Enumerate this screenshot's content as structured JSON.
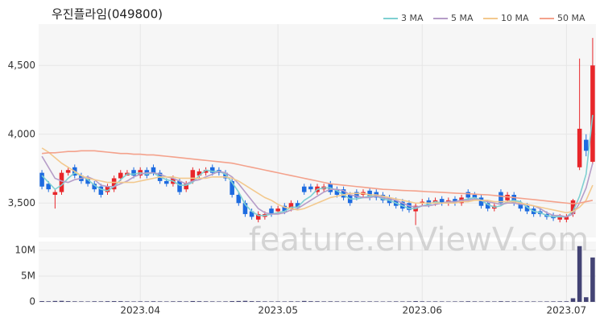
{
  "chart_data": {
    "type": "candlestick",
    "title": "우진플라임(049800)",
    "watermark": "feature.enViewV.com",
    "categories": [
      null,
      null,
      null,
      null,
      null,
      null,
      null,
      null,
      null,
      null,
      null,
      null,
      null,
      null,
      null,
      null,
      null,
      null,
      null,
      null,
      null,
      null,
      null,
      null,
      null,
      null,
      null,
      null,
      null,
      null,
      null,
      null,
      null,
      null,
      null,
      null,
      null,
      null,
      null,
      null,
      null,
      null,
      null,
      null,
      null,
      null,
      null,
      null,
      null,
      null,
      null,
      null,
      null,
      null,
      null,
      null,
      null,
      null,
      null,
      null,
      null,
      null,
      null,
      null,
      null,
      null,
      null,
      null,
      null,
      null,
      null,
      null,
      null,
      null,
      null,
      null,
      null,
      null,
      null,
      null,
      null,
      null,
      null,
      null,
      null
    ],
    "xticks": [
      {
        "value": 15,
        "label": "2023.04"
      },
      {
        "value": 36,
        "label": "2023.05"
      },
      {
        "value": 58,
        "label": "2023.06"
      },
      {
        "value": 80,
        "label": "2023.07"
      }
    ],
    "open": [
      3720,
      3640,
      3560,
      3580,
      3720,
      3760,
      3700,
      3680,
      3640,
      3620,
      3580,
      3600,
      3680,
      3700,
      3740,
      3700,
      3740,
      3760,
      3720,
      3660,
      3640,
      3660,
      3600,
      3660,
      3700,
      3720,
      3760,
      3740,
      3720,
      3660,
      3560,
      3500,
      3440,
      3380,
      3400,
      3460,
      3440,
      3480,
      3460,
      3500,
      3620,
      3620,
      3580,
      3600,
      3640,
      3600,
      3600,
      3560,
      3580,
      3560,
      3590,
      3580,
      3560,
      3540,
      3520,
      3510,
      3500,
      3440,
      3500,
      3520,
      3500,
      3530,
      3500,
      3530,
      3500,
      3580,
      3560,
      3540,
      3500,
      3460,
      3580,
      3520,
      3560,
      3500,
      3480,
      3460,
      3440,
      3420,
      3410,
      3380,
      3380,
      3420,
      3760,
      3960,
      3800
    ],
    "high": [
      3740,
      3660,
      3600,
      3740,
      3760,
      3780,
      3720,
      3700,
      3660,
      3640,
      3640,
      3700,
      3740,
      3740,
      3760,
      3760,
      3760,
      3780,
      3740,
      3680,
      3700,
      3680,
      3660,
      3760,
      3750,
      3760,
      3780,
      3760,
      3740,
      3680,
      3580,
      3520,
      3460,
      3440,
      3440,
      3480,
      3480,
      3500,
      3520,
      3520,
      3640,
      3640,
      3640,
      3640,
      3660,
      3620,
      3620,
      3580,
      3600,
      3600,
      3610,
      3600,
      3580,
      3560,
      3540,
      3530,
      3520,
      3500,
      3530,
      3540,
      3540,
      3550,
      3540,
      3550,
      3560,
      3600,
      3580,
      3560,
      3520,
      3500,
      3600,
      3580,
      3580,
      3520,
      3500,
      3480,
      3460,
      3440,
      3430,
      3420,
      3420,
      3530,
      4550,
      4000,
      4700
    ],
    "low": [
      3600,
      3580,
      3460,
      3560,
      3700,
      3680,
      3640,
      3620,
      3580,
      3540,
      3560,
      3580,
      3660,
      3700,
      3680,
      3680,
      3680,
      3700,
      3640,
      3620,
      3620,
      3560,
      3580,
      3640,
      3680,
      3700,
      3700,
      3700,
      3660,
      3540,
      3480,
      3400,
      3380,
      3360,
      3380,
      3400,
      3420,
      3420,
      3440,
      3450,
      3560,
      3580,
      3560,
      3580,
      3560,
      3540,
      3520,
      3480,
      3520,
      3540,
      3520,
      3520,
      3500,
      3480,
      3460,
      3440,
      3430,
      3340,
      3480,
      3470,
      3480,
      3480,
      3480,
      3480,
      3480,
      3520,
      3520,
      3460,
      3440,
      3440,
      3480,
      3500,
      3480,
      3440,
      3420,
      3400,
      3400,
      3380,
      3370,
      3360,
      3360,
      3400,
      3740,
      3840,
      3780
    ],
    "close": [
      3620,
      3600,
      3580,
      3720,
      3740,
      3700,
      3660,
      3640,
      3600,
      3560,
      3620,
      3680,
      3720,
      3720,
      3700,
      3740,
      3700,
      3720,
      3660,
      3640,
      3680,
      3580,
      3640,
      3740,
      3730,
      3740,
      3720,
      3720,
      3680,
      3560,
      3500,
      3420,
      3400,
      3420,
      3420,
      3420,
      3460,
      3440,
      3500,
      3470,
      3580,
      3600,
      3620,
      3620,
      3580,
      3560,
      3540,
      3500,
      3540,
      3580,
      3540,
      3540,
      3520,
      3500,
      3480,
      3460,
      3450,
      3480,
      3510,
      3490,
      3520,
      3500,
      3520,
      3500,
      3540,
      3540,
      3540,
      3480,
      3460,
      3480,
      3500,
      3560,
      3500,
      3460,
      3440,
      3420,
      3420,
      3400,
      3390,
      3400,
      3400,
      3520,
      4040,
      3880,
      4500
    ],
    "up_color": "#e8262a",
    "down_color": "#1d6be0",
    "ylim": [
      3250,
      4800
    ],
    "yticks": [
      {
        "value": 3500,
        "label": "3,500"
      },
      {
        "value": 4000,
        "label": "4,000"
      },
      {
        "value": 4500,
        "label": "4,500"
      }
    ],
    "grid": true,
    "legend": "top-right",
    "series": [
      {
        "name": "3 MA",
        "color": "#7fd0d2",
        "values": [
          3700,
          3650,
          3600,
          3630,
          3680,
          3720,
          3700,
          3670,
          3630,
          3600,
          3590,
          3620,
          3670,
          3710,
          3710,
          3720,
          3710,
          3720,
          3690,
          3670,
          3660,
          3630,
          3630,
          3650,
          3700,
          3740,
          3730,
          3730,
          3710,
          3650,
          3580,
          3490,
          3440,
          3410,
          3410,
          3420,
          3430,
          3440,
          3470,
          3470,
          3520,
          3550,
          3600,
          3610,
          3610,
          3590,
          3560,
          3530,
          3530,
          3540,
          3550,
          3550,
          3530,
          3520,
          3500,
          3480,
          3460,
          3460,
          3480,
          3490,
          3510,
          3500,
          3510,
          3510,
          3520,
          3530,
          3540,
          3520,
          3490,
          3470,
          3480,
          3510,
          3520,
          3510,
          3470,
          3440,
          3430,
          3410,
          3400,
          3400,
          3400,
          3440,
          3550,
          3710,
          4140
        ]
      },
      {
        "name": "5 MA",
        "color": "#b69dc8",
        "values": [
          3840,
          3760,
          3680,
          3660,
          3650,
          3670,
          3680,
          3690,
          3670,
          3630,
          3620,
          3620,
          3640,
          3660,
          3690,
          3710,
          3720,
          3720,
          3710,
          3690,
          3680,
          3660,
          3640,
          3660,
          3670,
          3690,
          3710,
          3730,
          3720,
          3690,
          3640,
          3580,
          3520,
          3460,
          3430,
          3420,
          3420,
          3430,
          3450,
          3460,
          3490,
          3520,
          3550,
          3580,
          3600,
          3600,
          3590,
          3560,
          3550,
          3540,
          3540,
          3550,
          3540,
          3530,
          3520,
          3500,
          3480,
          3470,
          3480,
          3480,
          3490,
          3500,
          3510,
          3510,
          3520,
          3520,
          3530,
          3520,
          3510,
          3500,
          3490,
          3500,
          3500,
          3490,
          3490,
          3480,
          3460,
          3430,
          3410,
          3410,
          3400,
          3420,
          3500,
          3610,
          3790
        ]
      },
      {
        "name": "10 MA",
        "color": "#f3c98e",
        "values": [
          3900,
          3870,
          3830,
          3790,
          3760,
          3730,
          3700,
          3680,
          3670,
          3660,
          3650,
          3650,
          3650,
          3650,
          3650,
          3660,
          3670,
          3680,
          3690,
          3690,
          3690,
          3680,
          3680,
          3680,
          3680,
          3680,
          3690,
          3690,
          3690,
          3680,
          3660,
          3630,
          3600,
          3570,
          3540,
          3520,
          3490,
          3470,
          3460,
          3450,
          3460,
          3480,
          3500,
          3520,
          3540,
          3550,
          3560,
          3570,
          3570,
          3570,
          3560,
          3560,
          3550,
          3540,
          3530,
          3520,
          3510,
          3500,
          3500,
          3500,
          3500,
          3500,
          3500,
          3500,
          3510,
          3510,
          3520,
          3520,
          3520,
          3510,
          3510,
          3510,
          3510,
          3500,
          3490,
          3480,
          3470,
          3460,
          3450,
          3440,
          3430,
          3440,
          3470,
          3520,
          3630
        ]
      },
      {
        "name": "50 MA",
        "color": "#f4a28c",
        "values": [
          3860,
          3865,
          3865,
          3870,
          3875,
          3875,
          3880,
          3880,
          3880,
          3875,
          3870,
          3865,
          3860,
          3860,
          3855,
          3855,
          3850,
          3850,
          3845,
          3840,
          3835,
          3830,
          3825,
          3820,
          3815,
          3810,
          3805,
          3800,
          3795,
          3790,
          3780,
          3770,
          3760,
          3750,
          3740,
          3730,
          3720,
          3710,
          3700,
          3690,
          3680,
          3670,
          3660,
          3650,
          3640,
          3635,
          3630,
          3625,
          3620,
          3615,
          3610,
          3605,
          3600,
          3598,
          3595,
          3592,
          3590,
          3588,
          3585,
          3582,
          3580,
          3578,
          3575,
          3572,
          3570,
          3568,
          3565,
          3562,
          3560,
          3555,
          3550,
          3545,
          3540,
          3535,
          3530,
          3525,
          3520,
          3515,
          3510,
          3505,
          3500,
          3495,
          3500,
          3510,
          3520
        ]
      }
    ],
    "volume": {
      "color": "#434374",
      "ylim": [
        0,
        11700000
      ],
      "yticks": [
        0,
        {
          "value": 5000000,
          "label": "5M"
        },
        {
          "value": 10000000,
          "label": "10M"
        }
      ],
      "values": [
        150000,
        120000,
        180000,
        200000,
        140000,
        110000,
        100000,
        90000,
        120000,
        110000,
        130000,
        150000,
        140000,
        100000,
        90000,
        110000,
        100000,
        120000,
        100000,
        90000,
        110000,
        120000,
        100000,
        160000,
        130000,
        110000,
        100000,
        90000,
        100000,
        150000,
        170000,
        200000,
        140000,
        120000,
        100000,
        90000,
        100000,
        90000,
        110000,
        100000,
        180000,
        130000,
        120000,
        100000,
        110000,
        100000,
        90000,
        110000,
        100000,
        90000,
        100000,
        90000,
        80000,
        90000,
        100000,
        90000,
        100000,
        150000,
        110000,
        90000,
        100000,
        90000,
        80000,
        90000,
        100000,
        120000,
        100000,
        90000,
        100000,
        90000,
        130000,
        110000,
        100000,
        90000,
        100000,
        90000,
        80000,
        90000,
        100000,
        110000,
        120000,
        700000,
        10800000,
        900000,
        8600000
      ]
    }
  }
}
